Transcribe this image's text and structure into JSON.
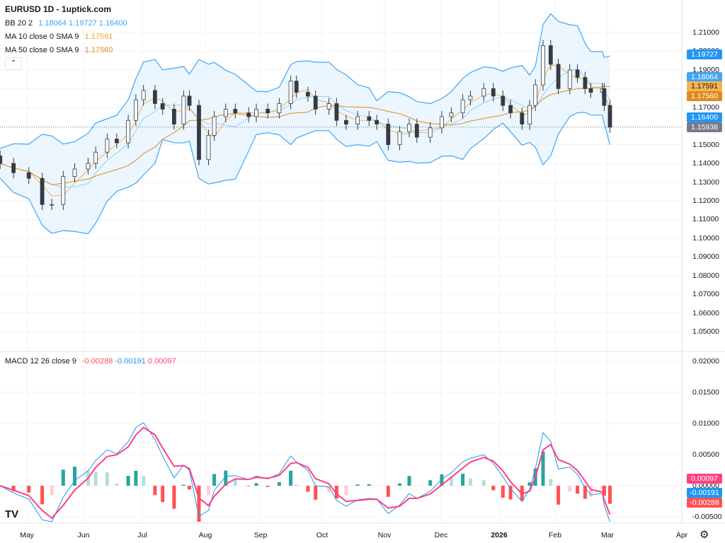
{
  "header": {
    "title": "EURUSD 1D - 1uptick.com"
  },
  "legend": {
    "bb": {
      "label": "BB 20 2",
      "basis": "1.18064",
      "upper": "1.19727",
      "lower": "1.16400"
    },
    "ma10": {
      "label": "MA 10 close 0 SMA 9",
      "value": "1.17591"
    },
    "ma50": {
      "label": "MA 50 close 0 SMA 9",
      "value": "1.17560"
    },
    "macd": {
      "label": "MACD 12 26 close 9",
      "histogram": "-0.00288",
      "macd": "-0.00191",
      "signal": "0.00097"
    },
    "collapse_icon": "chevron-up-icon"
  },
  "colors": {
    "up_body": "#ffffff",
    "down_body": "#363a45",
    "wick": "#363a45",
    "bb_line": "#42a5f5",
    "bb_fill": "#e3f2fd",
    "ma10": "#f7b24d",
    "ma50": "#e08a1e",
    "macd_line": "#2196f3",
    "signal_line": "#ff4081",
    "hist_pos_strong": "#26a69a",
    "hist_pos_weak": "#b2dfdb",
    "hist_neg_strong": "#ff5252",
    "hist_neg_weak": "#ffcdd2",
    "last_price": "#787b86"
  },
  "chart_data": [
    {
      "type": "candlestick",
      "symbol": "EURUSD",
      "interval": "1D",
      "ylim": [
        1.045,
        1.212
      ],
      "y_ticks": [
        "1.21000",
        "1.20000",
        "1.19000",
        "1.18000",
        "1.17000",
        "1.16000",
        "1.15000",
        "1.14000",
        "1.13000",
        "1.12000",
        "1.11000",
        "1.10000",
        "1.09000",
        "1.08000",
        "1.07000",
        "1.06000",
        "1.05000"
      ],
      "x_ticks": [
        "May",
        "Jun",
        "Jul",
        "Aug",
        "Sep",
        "Oct",
        "Nov",
        "Dec",
        "2026",
        "Feb",
        "Mar",
        "Apr"
      ],
      "grid": true,
      "price_badges": [
        {
          "value": "1.19727",
          "color": "#2196f3"
        },
        {
          "value": "1.18064",
          "color": "#42a5f5"
        },
        {
          "value": "1.17591",
          "color": "#f7b24d"
        },
        {
          "value": "1.17560",
          "color": "#e08a1e"
        },
        {
          "value": "1.16400",
          "color": "#2196f3"
        },
        {
          "value": "1.15938",
          "color": "#787b86"
        }
      ],
      "dates": [
        "2025-04-17",
        "2025-04-24",
        "2025-05-02",
        "2025-05-09",
        "2025-05-14",
        "2025-05-20",
        "2025-05-26",
        "2025-06-02",
        "2025-06-06",
        "2025-06-12",
        "2025-06-17",
        "2025-06-23",
        "2025-06-27",
        "2025-07-01",
        "2025-07-07",
        "2025-07-11",
        "2025-07-17",
        "2025-07-22",
        "2025-07-25",
        "2025-07-30",
        "2025-08-04",
        "2025-08-07",
        "2025-08-13",
        "2025-08-18",
        "2025-08-25",
        "2025-08-29",
        "2025-09-04",
        "2025-09-10",
        "2025-09-16",
        "2025-09-19",
        "2025-09-25",
        "2025-09-29",
        "2025-10-06",
        "2025-10-10",
        "2025-10-15",
        "2025-10-21",
        "2025-10-27",
        "2025-10-31",
        "2025-11-06",
        "2025-11-12",
        "2025-11-17",
        "2025-11-21",
        "2025-11-28",
        "2025-12-04",
        "2025-12-09",
        "2025-12-15",
        "2025-12-19",
        "2025-12-26",
        "2025-12-31",
        "2026-01-05",
        "2026-01-09",
        "2026-01-15",
        "2026-01-19",
        "2026-01-22",
        "2026-01-26",
        "2026-01-30",
        "2026-02-03",
        "2026-02-09",
        "2026-02-13",
        "2026-02-17",
        "2026-02-20",
        "2026-02-26",
        "2026-02-27",
        "2026-03-02"
      ],
      "close": [
        1.14,
        1.135,
        1.132,
        1.118,
        1.118,
        1.133,
        1.137,
        1.14,
        1.146,
        1.153,
        1.151,
        1.163,
        1.174,
        1.179,
        1.172,
        1.169,
        1.161,
        1.176,
        1.171,
        1.142,
        1.155,
        1.165,
        1.169,
        1.167,
        1.165,
        1.169,
        1.167,
        1.172,
        1.184,
        1.178,
        1.176,
        1.169,
        1.172,
        1.163,
        1.161,
        1.165,
        1.163,
        1.161,
        1.15,
        1.157,
        1.161,
        1.154,
        1.159,
        1.165,
        1.167,
        1.174,
        1.176,
        1.18,
        1.176,
        1.171,
        1.167,
        1.161,
        1.171,
        1.182,
        1.203,
        1.193,
        1.18,
        1.19,
        1.186,
        1.18,
        1.178,
        1.18,
        1.171,
        1.15938
      ]
    },
    {
      "type": "macd",
      "ylim": [
        -0.0095,
        0.021
      ],
      "y_ticks": [
        "0.02000",
        "0.01500",
        "0.01000",
        "0.00500",
        "0.00000",
        "-0.00500"
      ],
      "badges": [
        {
          "value": "0.00097",
          "color": "#ff4081"
        },
        {
          "value": "-0.00191",
          "color": "#2196f3"
        },
        {
          "value": "-0.00288",
          "color": "#ff5252"
        }
      ]
    }
  ],
  "footer": {
    "logo": "TV",
    "settings_icon": "gear-icon"
  }
}
